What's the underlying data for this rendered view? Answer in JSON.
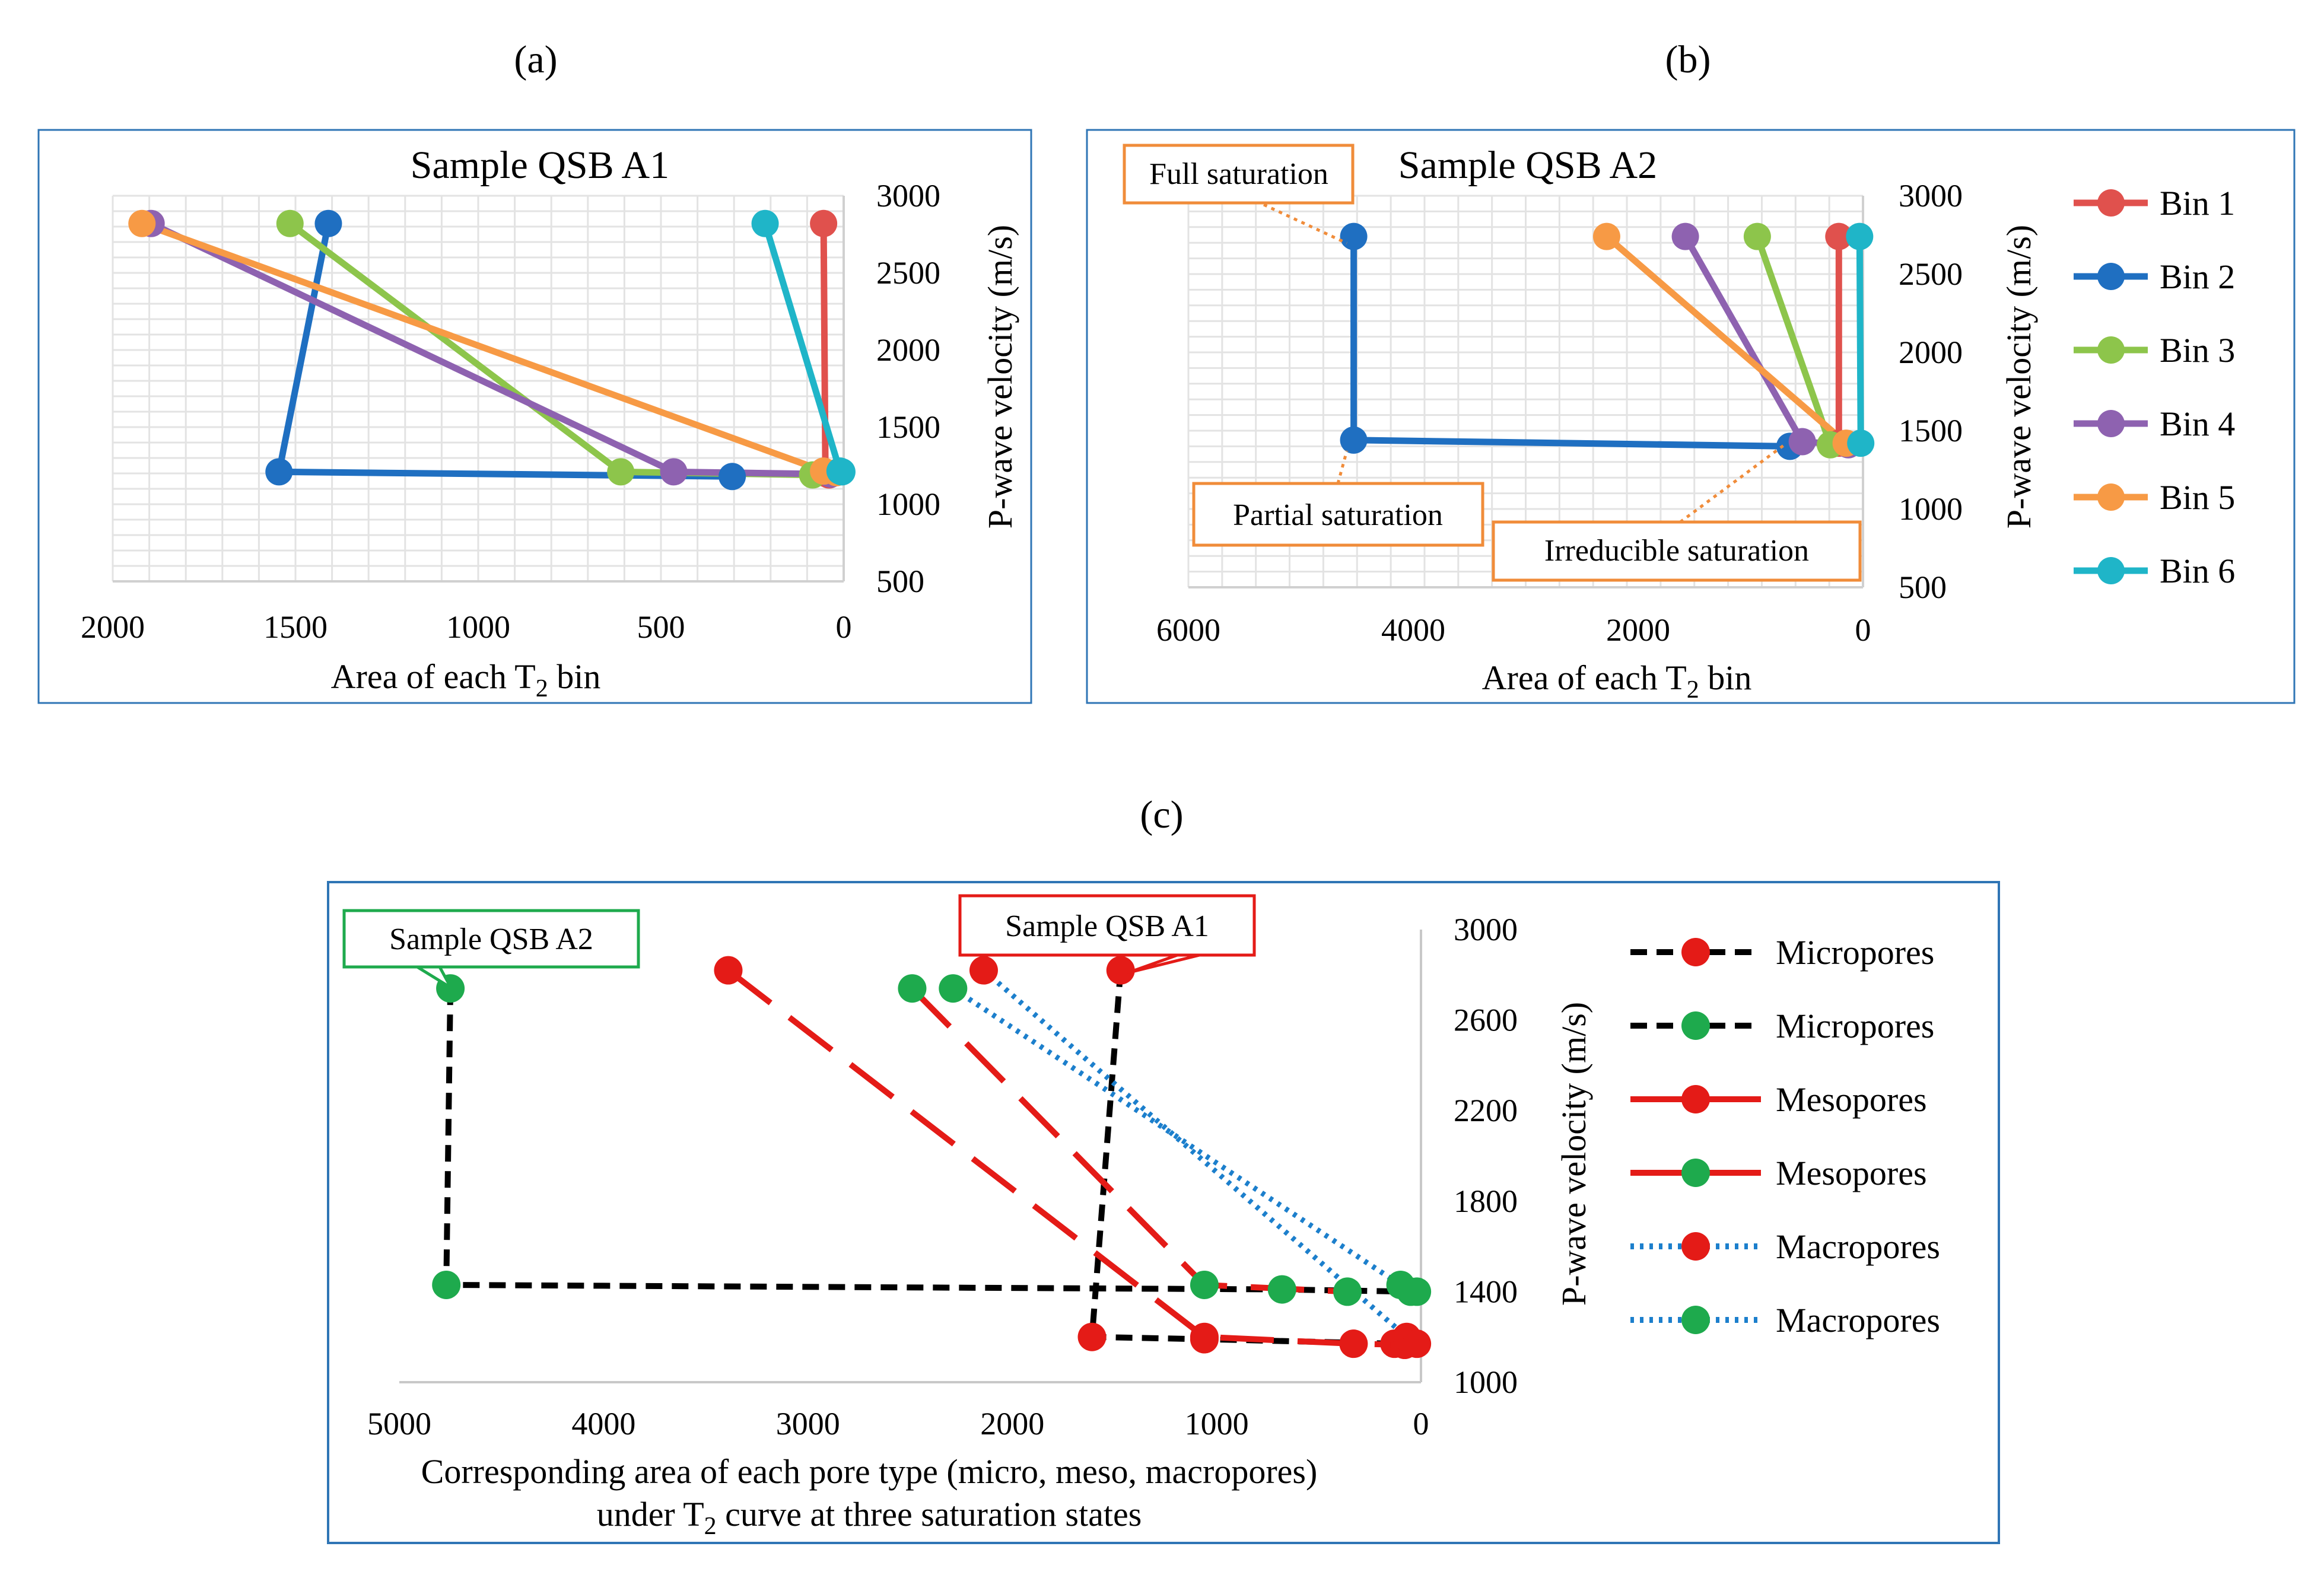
{
  "panel_labels": {
    "a": "(a)",
    "b": "(b)",
    "c": "(c)"
  },
  "colors": {
    "frame": "#2F75B5",
    "bin1": "#E0514D",
    "bin2": "#1F6FC1",
    "bin3": "#8DC54B",
    "bin4": "#8E62B0",
    "bin5": "#F79A45",
    "bin6": "#1FB5C8",
    "annot_orange": "#F08C3A",
    "red": "#E41B17",
    "green": "#1EAA4D",
    "black": "#000000",
    "blue_dot": "#1C7FCC",
    "grid": "#E3E3E3"
  },
  "chart_data": [
    {
      "id": "a",
      "type": "line",
      "title": "Sample QSB A1",
      "xlabel": "Area of each T",
      "xlabel_sub": "2",
      "xlabel_tail": " bin",
      "ylabel": "P-wave velocity (m/s)",
      "xlim": [
        0,
        2000
      ],
      "x_reversed": true,
      "ylim": [
        500,
        3000
      ],
      "xticks": [
        2000,
        1500,
        1000,
        500,
        0
      ],
      "yticks": [
        3000,
        2500,
        2000,
        1500,
        1000,
        500
      ],
      "grid": true,
      "series": [
        {
          "name": "Bin 1",
          "color_key": "bin1",
          "points": [
            [
              55,
              2820
            ],
            [
              50,
              1200
            ],
            [
              40,
              1190
            ]
          ]
        },
        {
          "name": "Bin 2",
          "color_key": "bin2",
          "points": [
            [
              1410,
              2820
            ],
            [
              1545,
              1210
            ],
            [
              305,
              1180
            ]
          ]
        },
        {
          "name": "Bin 3",
          "color_key": "bin3",
          "points": [
            [
              1515,
              2820
            ],
            [
              610,
              1210
            ],
            [
              85,
              1190
            ]
          ]
        },
        {
          "name": "Bin 4",
          "color_key": "bin4",
          "points": [
            [
              1895,
              2820
            ],
            [
              465,
              1210
            ],
            [
              35,
              1195
            ]
          ]
        },
        {
          "name": "Bin 5",
          "color_key": "bin5",
          "points": [
            [
              1920,
              2820
            ],
            [
              55,
              1215
            ],
            [
              20,
              1205
            ]
          ]
        },
        {
          "name": "Bin 6",
          "color_key": "bin6",
          "points": [
            [
              215,
              2820
            ],
            [
              10,
              1215
            ],
            [
              5,
              1210
            ]
          ]
        }
      ]
    },
    {
      "id": "b",
      "type": "line",
      "title": "Sample QSB A2",
      "xlabel": "Area of each T",
      "xlabel_sub": "2",
      "xlabel_tail": " bin",
      "ylabel": "P-wave velocity (m/s)",
      "xlim": [
        0,
        6000
      ],
      "x_reversed": true,
      "ylim": [
        500,
        3000
      ],
      "xticks": [
        6000,
        4000,
        2000,
        0
      ],
      "yticks": [
        3000,
        2500,
        2000,
        1500,
        1000,
        500
      ],
      "grid": true,
      "legend_position": "right",
      "series": [
        {
          "name": "Bin 1",
          "color_key": "bin1",
          "points": [
            [
              215,
              2740
            ],
            [
              215,
              1420
            ]
          ]
        },
        {
          "name": "Bin 2",
          "color_key": "bin2",
          "points": [
            [
              4530,
              2740
            ],
            [
              4530,
              1440
            ],
            [
              650,
              1400
            ]
          ]
        },
        {
          "name": "Bin 3",
          "color_key": "bin3",
          "points": [
            [
              940,
              2740
            ],
            [
              290,
              1410
            ]
          ]
        },
        {
          "name": "Bin 4",
          "color_key": "bin4",
          "points": [
            [
              1580,
              2740
            ],
            [
              540,
              1430
            ],
            [
              130,
              1410
            ]
          ]
        },
        {
          "name": "Bin 5",
          "color_key": "bin5",
          "points": [
            [
              2280,
              2740
            ],
            [
              150,
              1420
            ]
          ]
        },
        {
          "name": "Bin 6",
          "color_key": "bin6",
          "points": [
            [
              30,
              2740
            ],
            [
              20,
              1420
            ]
          ]
        }
      ],
      "annotations": [
        {
          "text": "Full saturation"
        },
        {
          "text": "Partial saturation"
        },
        {
          "text": "Irreducible saturation"
        }
      ]
    },
    {
      "id": "c",
      "type": "line",
      "xlabel_line1": "Corresponding area of each pore type (micro, meso, macropores)",
      "xlabel_line2_a": "under T",
      "xlabel_line2_sub": "2",
      "xlabel_line2_b": " curve at three saturation states",
      "ylabel": "P-wave velocity (m/s)",
      "xlim": [
        0,
        5000
      ],
      "x_reversed": true,
      "ylim": [
        1000,
        3000
      ],
      "xticks": [
        5000,
        4000,
        3000,
        2000,
        1000,
        0
      ],
      "yticks": [
        3000,
        2600,
        2200,
        1800,
        1400,
        1000
      ],
      "grid": false,
      "series": [
        {
          "name": "Micropores",
          "line": "black",
          "marker": "red",
          "dash": "28,16",
          "points": [
            [
              1470,
              2820
            ],
            [
              1610,
              1200
            ],
            [
              1060,
              1190
            ],
            [
              130,
              1170
            ]
          ]
        },
        {
          "name": "Micropores",
          "line": "black",
          "marker": "green",
          "dash": "28,16",
          "points": [
            [
              4750,
              2740
            ],
            [
              4770,
              1430
            ],
            [
              680,
              1410
            ],
            [
              50,
              1400
            ]
          ]
        },
        {
          "name": "Mesopores",
          "line": "red",
          "marker": "red",
          "dash": "90,40",
          "points": [
            [
              3390,
              2820
            ],
            [
              1060,
              1200
            ],
            [
              330,
              1170
            ],
            [
              80,
              1165
            ]
          ]
        },
        {
          "name": "Mesopores",
          "line": "red",
          "marker": "green",
          "dash": "90,40",
          "points": [
            [
              2490,
              2740
            ],
            [
              1060,
              1430
            ],
            [
              360,
              1400
            ]
          ]
        },
        {
          "name": "Macropores",
          "line": "blue",
          "marker": "red",
          "dash": "6,10",
          "points": [
            [
              2140,
              2820
            ],
            [
              70,
              1200
            ],
            [
              20,
              1170
            ]
          ]
        },
        {
          "name": "Macropores",
          "line": "blue",
          "marker": "green",
          "dash": "6,10",
          "points": [
            [
              2290,
              2740
            ],
            [
              100,
              1430
            ],
            [
              20,
              1400
            ]
          ]
        }
      ],
      "annotations": [
        {
          "text": "Sample QSB A2"
        },
        {
          "text": "Sample QSB A1"
        }
      ]
    }
  ]
}
